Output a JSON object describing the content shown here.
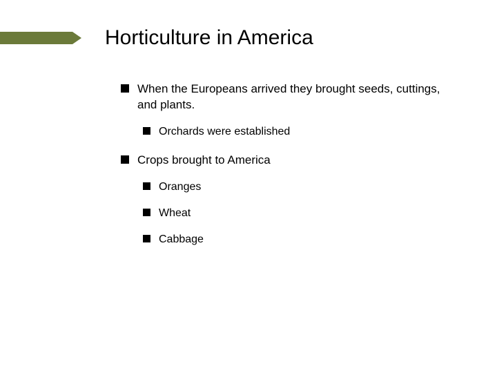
{
  "slide": {
    "title": "Horticulture in America",
    "accent_color": "#6b7a3a",
    "background_color": "#ffffff",
    "text_color": "#000000",
    "bullet_color": "#000000",
    "title_fontsize": 30,
    "body_fontsize_l1": 17,
    "body_fontsize_l2": 16,
    "bullets": [
      {
        "level": 1,
        "text": "When the Europeans arrived they brought seeds, cuttings, and plants."
      },
      {
        "level": 2,
        "text": "Orchards were established"
      },
      {
        "level": 1,
        "text": "Crops brought to America"
      },
      {
        "level": 2,
        "text": "Oranges"
      },
      {
        "level": 2,
        "text": "Wheat"
      },
      {
        "level": 2,
        "text": "Cabbage"
      }
    ]
  }
}
